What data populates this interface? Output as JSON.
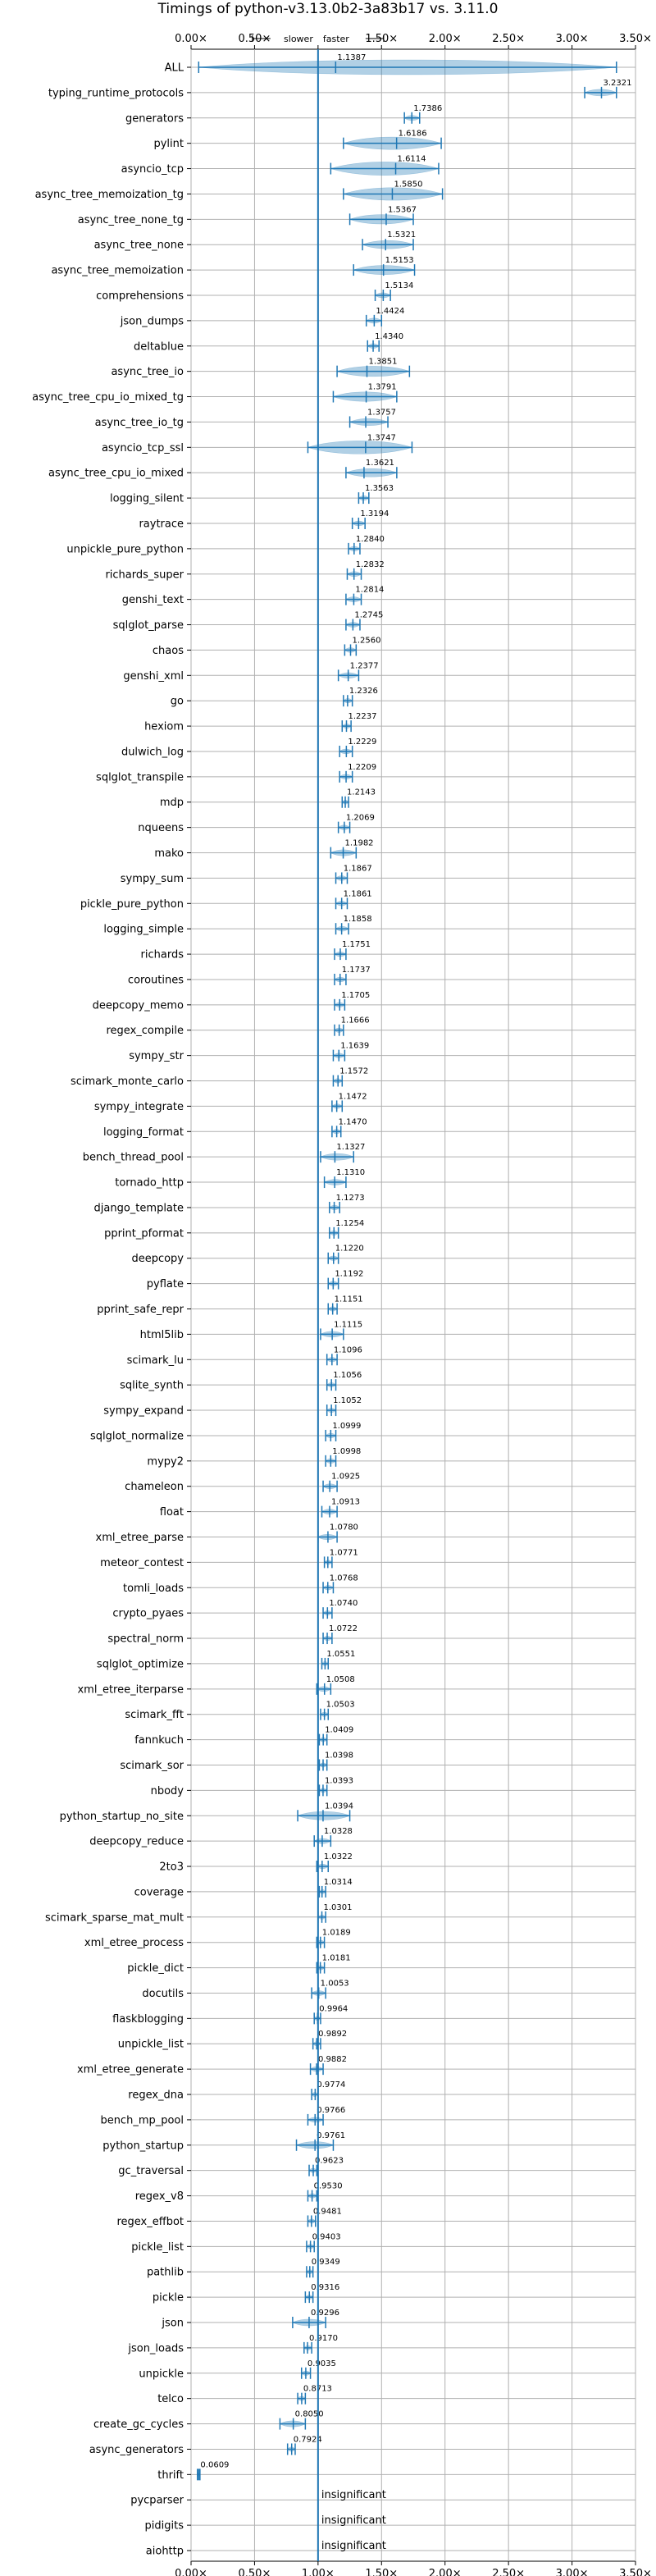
{
  "chart_data": {
    "type": "violin",
    "title": "Timings of python-v3.13.0b2-3a83b17 vs. 3.11.0",
    "xlabel": "",
    "ylabel": "",
    "xlim": [
      0,
      3.5
    ],
    "xticks": [
      "0.00×",
      "0.50×",
      "1.00×",
      "1.50×",
      "2.00×",
      "2.50×",
      "3.00×",
      "3.50×"
    ],
    "xtick_values": [
      0,
      0.5,
      1.0,
      1.5,
      2.0,
      2.5,
      3.0,
      3.5
    ],
    "reference_line": 1.0,
    "slower_label": "slower",
    "faster_label": "faster",
    "grid": true,
    "insignificant_label": "insignificant",
    "benchmarks": [
      {
        "name": "ALL",
        "value": 1.1387,
        "label": "1.1387",
        "lo": 0.06,
        "hi": 3.35
      },
      {
        "name": "typing_runtime_protocols",
        "value": 3.2321,
        "label": "3.2321",
        "lo": 3.1,
        "hi": 3.35
      },
      {
        "name": "generators",
        "value": 1.7386,
        "label": "1.7386",
        "lo": 1.68,
        "hi": 1.8
      },
      {
        "name": "pylint",
        "value": 1.6186,
        "label": "1.6186",
        "lo": 1.2,
        "hi": 1.97
      },
      {
        "name": "asyncio_tcp",
        "value": 1.6114,
        "label": "1.6114",
        "lo": 1.1,
        "hi": 1.95
      },
      {
        "name": "async_tree_memoization_tg",
        "value": 1.585,
        "label": "1.5850",
        "lo": 1.2,
        "hi": 1.98
      },
      {
        "name": "async_tree_none_tg",
        "value": 1.5367,
        "label": "1.5367",
        "lo": 1.25,
        "hi": 1.75
      },
      {
        "name": "async_tree_none",
        "value": 1.5321,
        "label": "1.5321",
        "lo": 1.35,
        "hi": 1.75
      },
      {
        "name": "async_tree_memoization",
        "value": 1.5153,
        "label": "1.5153",
        "lo": 1.28,
        "hi": 1.76
      },
      {
        "name": "comprehensions",
        "value": 1.5134,
        "label": "1.5134",
        "lo": 1.45,
        "hi": 1.57
      },
      {
        "name": "json_dumps",
        "value": 1.4424,
        "label": "1.4424",
        "lo": 1.38,
        "hi": 1.5
      },
      {
        "name": "deltablue",
        "value": 1.434,
        "label": "1.4340",
        "lo": 1.39,
        "hi": 1.48
      },
      {
        "name": "async_tree_io",
        "value": 1.3851,
        "label": "1.3851",
        "lo": 1.15,
        "hi": 1.72
      },
      {
        "name": "async_tree_cpu_io_mixed_tg",
        "value": 1.3791,
        "label": "1.3791",
        "lo": 1.12,
        "hi": 1.62
      },
      {
        "name": "async_tree_io_tg",
        "value": 1.3757,
        "label": "1.3757",
        "lo": 1.25,
        "hi": 1.55
      },
      {
        "name": "asyncio_tcp_ssl",
        "value": 1.3747,
        "label": "1.3747",
        "lo": 0.92,
        "hi": 1.74
      },
      {
        "name": "async_tree_cpu_io_mixed",
        "value": 1.3621,
        "label": "1.3621",
        "lo": 1.22,
        "hi": 1.62
      },
      {
        "name": "logging_silent",
        "value": 1.3563,
        "label": "1.3563",
        "lo": 1.32,
        "hi": 1.4
      },
      {
        "name": "raytrace",
        "value": 1.3194,
        "label": "1.3194",
        "lo": 1.27,
        "hi": 1.37
      },
      {
        "name": "unpickle_pure_python",
        "value": 1.284,
        "label": "1.2840",
        "lo": 1.24,
        "hi": 1.33
      },
      {
        "name": "richards_super",
        "value": 1.2832,
        "label": "1.2832",
        "lo": 1.23,
        "hi": 1.34
      },
      {
        "name": "genshi_text",
        "value": 1.2814,
        "label": "1.2814",
        "lo": 1.22,
        "hi": 1.34
      },
      {
        "name": "sqlglot_parse",
        "value": 1.2745,
        "label": "1.2745",
        "lo": 1.22,
        "hi": 1.33
      },
      {
        "name": "chaos",
        "value": 1.256,
        "label": "1.2560",
        "lo": 1.21,
        "hi": 1.3
      },
      {
        "name": "genshi_xml",
        "value": 1.2377,
        "label": "1.2377",
        "lo": 1.16,
        "hi": 1.32
      },
      {
        "name": "go",
        "value": 1.2326,
        "label": "1.2326",
        "lo": 1.2,
        "hi": 1.27
      },
      {
        "name": "hexiom",
        "value": 1.2237,
        "label": "1.2237",
        "lo": 1.19,
        "hi": 1.26
      },
      {
        "name": "dulwich_log",
        "value": 1.2229,
        "label": "1.2229",
        "lo": 1.17,
        "hi": 1.27
      },
      {
        "name": "sqlglot_transpile",
        "value": 1.2209,
        "label": "1.2209",
        "lo": 1.17,
        "hi": 1.27
      },
      {
        "name": "mdp",
        "value": 1.2143,
        "label": "1.2143",
        "lo": 1.19,
        "hi": 1.24
      },
      {
        "name": "nqueens",
        "value": 1.2069,
        "label": "1.2069",
        "lo": 1.16,
        "hi": 1.25
      },
      {
        "name": "mako",
        "value": 1.1982,
        "label": "1.1982",
        "lo": 1.1,
        "hi": 1.3
      },
      {
        "name": "sympy_sum",
        "value": 1.1867,
        "label": "1.1867",
        "lo": 1.14,
        "hi": 1.23
      },
      {
        "name": "pickle_pure_python",
        "value": 1.1861,
        "label": "1.1861",
        "lo": 1.14,
        "hi": 1.23
      },
      {
        "name": "logging_simple",
        "value": 1.1858,
        "label": "1.1858",
        "lo": 1.14,
        "hi": 1.24
      },
      {
        "name": "richards",
        "value": 1.1751,
        "label": "1.1751",
        "lo": 1.13,
        "hi": 1.22
      },
      {
        "name": "coroutines",
        "value": 1.1737,
        "label": "1.1737",
        "lo": 1.13,
        "hi": 1.22
      },
      {
        "name": "deepcopy_memo",
        "value": 1.1705,
        "label": "1.1705",
        "lo": 1.13,
        "hi": 1.21
      },
      {
        "name": "regex_compile",
        "value": 1.1666,
        "label": "1.1666",
        "lo": 1.13,
        "hi": 1.2
      },
      {
        "name": "sympy_str",
        "value": 1.1639,
        "label": "1.1639",
        "lo": 1.12,
        "hi": 1.21
      },
      {
        "name": "scimark_monte_carlo",
        "value": 1.1572,
        "label": "1.1572",
        "lo": 1.12,
        "hi": 1.19
      },
      {
        "name": "sympy_integrate",
        "value": 1.1472,
        "label": "1.1472",
        "lo": 1.11,
        "hi": 1.19
      },
      {
        "name": "logging_format",
        "value": 1.147,
        "label": "1.1470",
        "lo": 1.11,
        "hi": 1.18
      },
      {
        "name": "bench_thread_pool",
        "value": 1.1327,
        "label": "1.1327",
        "lo": 1.02,
        "hi": 1.28
      },
      {
        "name": "tornado_http",
        "value": 1.131,
        "label": "1.1310",
        "lo": 1.05,
        "hi": 1.22
      },
      {
        "name": "django_template",
        "value": 1.1273,
        "label": "1.1273",
        "lo": 1.09,
        "hi": 1.17
      },
      {
        "name": "pprint_pformat",
        "value": 1.1254,
        "label": "1.1254",
        "lo": 1.09,
        "hi": 1.16
      },
      {
        "name": "deepcopy",
        "value": 1.122,
        "label": "1.1220",
        "lo": 1.08,
        "hi": 1.16
      },
      {
        "name": "pyflate",
        "value": 1.1192,
        "label": "1.1192",
        "lo": 1.08,
        "hi": 1.16
      },
      {
        "name": "pprint_safe_repr",
        "value": 1.1151,
        "label": "1.1151",
        "lo": 1.08,
        "hi": 1.15
      },
      {
        "name": "html5lib",
        "value": 1.1115,
        "label": "1.1115",
        "lo": 1.02,
        "hi": 1.2
      },
      {
        "name": "scimark_lu",
        "value": 1.1096,
        "label": "1.1096",
        "lo": 1.07,
        "hi": 1.15
      },
      {
        "name": "sqlite_synth",
        "value": 1.1056,
        "label": "1.1056",
        "lo": 1.07,
        "hi": 1.14
      },
      {
        "name": "sympy_expand",
        "value": 1.1052,
        "label": "1.1052",
        "lo": 1.07,
        "hi": 1.14
      },
      {
        "name": "sqlglot_normalize",
        "value": 1.0999,
        "label": "1.0999",
        "lo": 1.06,
        "hi": 1.14
      },
      {
        "name": "mypy2",
        "value": 1.0998,
        "label": "1.0998",
        "lo": 1.06,
        "hi": 1.14
      },
      {
        "name": "chameleon",
        "value": 1.0925,
        "label": "1.0925",
        "lo": 1.04,
        "hi": 1.15
      },
      {
        "name": "float",
        "value": 1.0913,
        "label": "1.0913",
        "lo": 1.03,
        "hi": 1.15
      },
      {
        "name": "xml_etree_parse",
        "value": 1.078,
        "label": "1.0780",
        "lo": 1.0,
        "hi": 1.15
      },
      {
        "name": "meteor_contest",
        "value": 1.0771,
        "label": "1.0771",
        "lo": 1.05,
        "hi": 1.11
      },
      {
        "name": "tomli_loads",
        "value": 1.0768,
        "label": "1.0768",
        "lo": 1.04,
        "hi": 1.12
      },
      {
        "name": "crypto_pyaes",
        "value": 1.074,
        "label": "1.0740",
        "lo": 1.04,
        "hi": 1.11
      },
      {
        "name": "spectral_norm",
        "value": 1.0722,
        "label": "1.0722",
        "lo": 1.04,
        "hi": 1.11
      },
      {
        "name": "sqlglot_optimize",
        "value": 1.0551,
        "label": "1.0551",
        "lo": 1.03,
        "hi": 1.08
      },
      {
        "name": "xml_etree_iterparse",
        "value": 1.0508,
        "label": "1.0508",
        "lo": 0.99,
        "hi": 1.1
      },
      {
        "name": "scimark_fft",
        "value": 1.0503,
        "label": "1.0503",
        "lo": 1.02,
        "hi": 1.08
      },
      {
        "name": "fannkuch",
        "value": 1.0409,
        "label": "1.0409",
        "lo": 1.01,
        "hi": 1.07
      },
      {
        "name": "scimark_sor",
        "value": 1.0398,
        "label": "1.0398",
        "lo": 1.01,
        "hi": 1.07
      },
      {
        "name": "nbody",
        "value": 1.0393,
        "label": "1.0393",
        "lo": 1.01,
        "hi": 1.07
      },
      {
        "name": "python_startup_no_site",
        "value": 1.0394,
        "label": "1.0394",
        "lo": 0.84,
        "hi": 1.25
      },
      {
        "name": "deepcopy_reduce",
        "value": 1.0328,
        "label": "1.0328",
        "lo": 0.97,
        "hi": 1.1
      },
      {
        "name": "2to3",
        "value": 1.0322,
        "label": "1.0322",
        "lo": 0.99,
        "hi": 1.08
      },
      {
        "name": "coverage",
        "value": 1.0314,
        "label": "1.0314",
        "lo": 1.01,
        "hi": 1.06
      },
      {
        "name": "scimark_sparse_mat_mult",
        "value": 1.0301,
        "label": "1.0301",
        "lo": 1.0,
        "hi": 1.06
      },
      {
        "name": "xml_etree_process",
        "value": 1.0189,
        "label": "1.0189",
        "lo": 0.99,
        "hi": 1.05
      },
      {
        "name": "pickle_dict",
        "value": 1.0181,
        "label": "1.0181",
        "lo": 0.99,
        "hi": 1.05
      },
      {
        "name": "docutils",
        "value": 1.0053,
        "label": "1.0053",
        "lo": 0.95,
        "hi": 1.06
      },
      {
        "name": "flaskblogging",
        "value": 0.9964,
        "label": "0.9964",
        "lo": 0.97,
        "hi": 1.02
      },
      {
        "name": "unpickle_list",
        "value": 0.9892,
        "label": "0.9892",
        "lo": 0.96,
        "hi": 1.02
      },
      {
        "name": "xml_etree_generate",
        "value": 0.9882,
        "label": "0.9882",
        "lo": 0.94,
        "hi": 1.04
      },
      {
        "name": "regex_dna",
        "value": 0.9774,
        "label": "0.9774",
        "lo": 0.95,
        "hi": 1.0
      },
      {
        "name": "bench_mp_pool",
        "value": 0.9766,
        "label": "0.9766",
        "lo": 0.92,
        "hi": 1.04
      },
      {
        "name": "python_startup",
        "value": 0.9761,
        "label": "0.9761",
        "lo": 0.83,
        "hi": 1.12
      },
      {
        "name": "gc_traversal",
        "value": 0.9623,
        "label": "0.9623",
        "lo": 0.93,
        "hi": 0.99
      },
      {
        "name": "regex_v8",
        "value": 0.953,
        "label": "0.9530",
        "lo": 0.92,
        "hi": 0.99
      },
      {
        "name": "regex_effbot",
        "value": 0.9481,
        "label": "0.9481",
        "lo": 0.92,
        "hi": 0.98
      },
      {
        "name": "pickle_list",
        "value": 0.9403,
        "label": "0.9403",
        "lo": 0.91,
        "hi": 0.97
      },
      {
        "name": "pathlib",
        "value": 0.9349,
        "label": "0.9349",
        "lo": 0.91,
        "hi": 0.96
      },
      {
        "name": "pickle",
        "value": 0.9316,
        "label": "0.9316",
        "lo": 0.9,
        "hi": 0.96
      },
      {
        "name": "json",
        "value": 0.9296,
        "label": "0.9296",
        "lo": 0.8,
        "hi": 1.06
      },
      {
        "name": "json_loads",
        "value": 0.917,
        "label": "0.9170",
        "lo": 0.89,
        "hi": 0.95
      },
      {
        "name": "unpickle",
        "value": 0.9035,
        "label": "0.9035",
        "lo": 0.87,
        "hi": 0.94
      },
      {
        "name": "telco",
        "value": 0.8713,
        "label": "0.8713",
        "lo": 0.84,
        "hi": 0.9
      },
      {
        "name": "create_gc_cycles",
        "value": 0.805,
        "label": "0.8050",
        "lo": 0.7,
        "hi": 0.9
      },
      {
        "name": "async_generators",
        "value": 0.7924,
        "label": "0.7924",
        "lo": 0.76,
        "hi": 0.82
      },
      {
        "name": "thrift",
        "value": 0.0609,
        "label": "0.0609",
        "lo": 0.05,
        "hi": 0.07
      },
      {
        "name": "pycparser",
        "value": null,
        "label": "insignificant"
      },
      {
        "name": "pidigits",
        "value": null,
        "label": "insignificant"
      },
      {
        "name": "aiohttp",
        "value": null,
        "label": "insignificant"
      }
    ]
  }
}
